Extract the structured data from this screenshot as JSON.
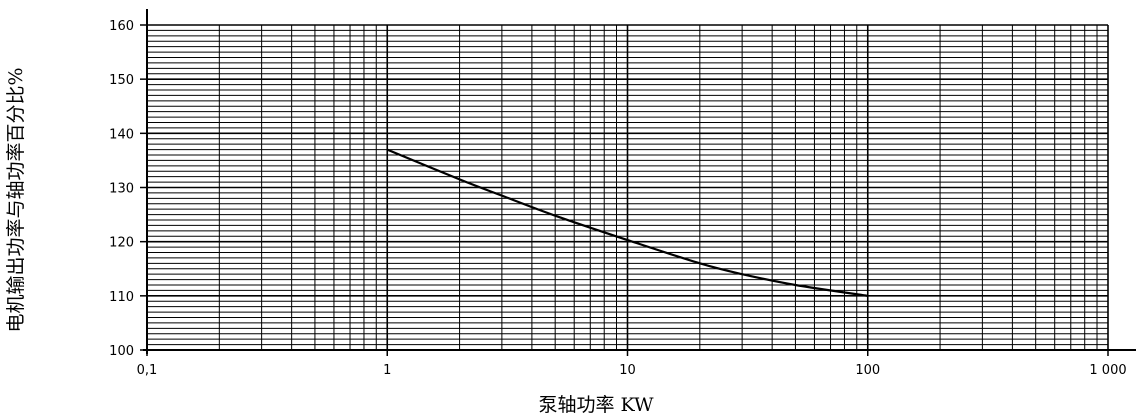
{
  "chart_data": {
    "type": "line",
    "ylabel": "电机输出功率与轴功率百分比%",
    "xlabel": "泵轴功率 KW",
    "x_scale": "log",
    "xlim": [
      0.1,
      1000
    ],
    "ylim": [
      100,
      160
    ],
    "x_ticks": [
      {
        "value": 0.1,
        "label": "0,1"
      },
      {
        "value": 1,
        "label": "1"
      },
      {
        "value": 10,
        "label": "10"
      },
      {
        "value": 100,
        "label": "100"
      },
      {
        "value": 1000,
        "label": "1 000"
      }
    ],
    "y_ticks": [
      {
        "value": 100,
        "label": "100"
      },
      {
        "value": 110,
        "label": "110"
      },
      {
        "value": 120,
        "label": "120"
      },
      {
        "value": 130,
        "label": "130"
      },
      {
        "value": 140,
        "label": "140"
      },
      {
        "value": 150,
        "label": "150"
      },
      {
        "value": 160,
        "label": "160"
      }
    ],
    "grid": true,
    "y_minor_step": 1,
    "series": [
      {
        "x": [
          1,
          2,
          3,
          5,
          10,
          20,
          30,
          50,
          100
        ],
        "y": [
          137,
          131.5,
          128.5,
          124.8,
          120.3,
          116,
          114,
          112,
          110
        ]
      }
    ],
    "colors": {
      "line": "#000000",
      "grid": "#000000",
      "background": "#ffffff"
    }
  }
}
